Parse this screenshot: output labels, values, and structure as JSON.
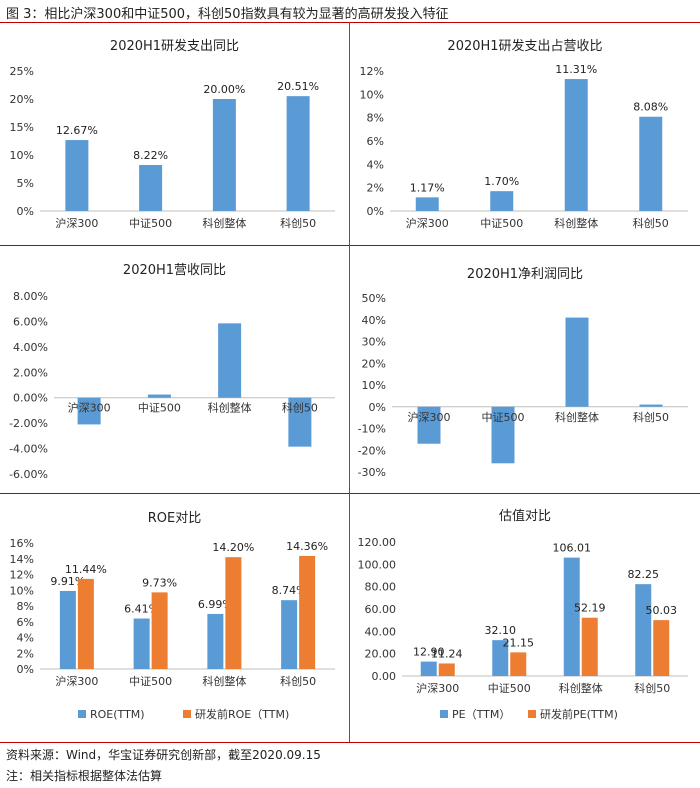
{
  "figure_title": "图 3：相比沪深300和中证500，科创50指数具有较为显著的高研发投入特征",
  "source": "资料来源：Wind，华宝证券研究创新部，截至2020.09.15",
  "note": "注：相关指标根据整体法估算",
  "colors": {
    "blue": "#5b9bd5",
    "orange": "#ed7d31",
    "rule": "#c00000"
  },
  "chart_data": [
    {
      "type": "bar",
      "title": "2020H1研发支出同比",
      "categories": [
        "沪深300",
        "中证500",
        "科创整体",
        "科创50"
      ],
      "series": [
        {
          "name": "研发支出同比",
          "values": [
            12.67,
            8.22,
            20.0,
            20.51
          ]
        }
      ],
      "data_labels": [
        "12.67%",
        "8.22%",
        "20.00%",
        "20.51%"
      ],
      "yticks": [
        "0%",
        "5%",
        "10%",
        "15%",
        "20%",
        "25%"
      ],
      "ylim": [
        0,
        25
      ],
      "legend": []
    },
    {
      "type": "bar",
      "title": "2020H1研发支出占营收比",
      "categories": [
        "沪深300",
        "中证500",
        "科创整体",
        "科创50"
      ],
      "series": [
        {
          "name": "研发支出占营收比",
          "values": [
            1.17,
            1.7,
            11.31,
            8.08
          ]
        }
      ],
      "data_labels": [
        "1.17%",
        "1.70%",
        "11.31%",
        "8.08%"
      ],
      "yticks": [
        "0%",
        "2%",
        "4%",
        "6%",
        "8%",
        "10%",
        "12%"
      ],
      "ylim": [
        0,
        12
      ],
      "legend": []
    },
    {
      "type": "bar",
      "title": "2020H1营收同比",
      "categories": [
        "沪深300",
        "中证500",
        "科创整体",
        "科创50"
      ],
      "series": [
        {
          "name": "营收同比",
          "values": [
            -2.1,
            0.25,
            5.85,
            -3.85
          ]
        }
      ],
      "data_labels": [],
      "yticks": [
        "-6.00%",
        "-4.00%",
        "-2.00%",
        "0.00%",
        "2.00%",
        "4.00%",
        "6.00%",
        "8.00%"
      ],
      "ylim": [
        -6,
        8
      ],
      "legend": []
    },
    {
      "type": "bar",
      "title": "2020H1净利润同比",
      "categories": [
        "沪深300",
        "中证500",
        "科创整体",
        "科创50"
      ],
      "series": [
        {
          "name": "净利润同比",
          "values": [
            -17,
            -26,
            41,
            1
          ]
        }
      ],
      "data_labels": [],
      "yticks": [
        "-30%",
        "-20%",
        "-10%",
        "0%",
        "10%",
        "20%",
        "30%",
        "40%",
        "50%"
      ],
      "ylim": [
        -30,
        50
      ],
      "legend": []
    },
    {
      "type": "bar",
      "title": "ROE对比",
      "categories": [
        "沪深300",
        "中证500",
        "科创整体",
        "科创50"
      ],
      "series": [
        {
          "name": "ROE(TTM)",
          "values": [
            9.91,
            6.41,
            6.99,
            8.74
          ],
          "data_labels": [
            "9.91%",
            "6.41%",
            "6.99%",
            "8.74%"
          ]
        },
        {
          "name": "研发前ROE（TTM)",
          "values": [
            11.44,
            9.73,
            14.2,
            14.36
          ],
          "data_labels": [
            "11.44%",
            "9.73%",
            "14.20%",
            "14.36%"
          ]
        }
      ],
      "yticks": [
        "0%",
        "2%",
        "4%",
        "6%",
        "8%",
        "10%",
        "12%",
        "14%",
        "16%"
      ],
      "ylim": [
        0,
        16
      ],
      "legend": [
        "ROE(TTM)",
        "研发前ROE（TTM)"
      ]
    },
    {
      "type": "bar",
      "title": "估值对比",
      "categories": [
        "沪深300",
        "中证500",
        "科创整体",
        "科创50"
      ],
      "series": [
        {
          "name": "PE（TTM）",
          "values": [
            12.9,
            32.1,
            106.01,
            82.25
          ],
          "data_labels": [
            "12.90",
            "32.10",
            "106.01",
            "82.25"
          ]
        },
        {
          "name": "研发前PE(TTM)",
          "values": [
            11.24,
            21.15,
            52.19,
            50.03
          ],
          "data_labels": [
            "11.24",
            "21.15",
            "52.19",
            "50.03"
          ]
        }
      ],
      "yticks": [
        "0.00",
        "20.00",
        "40.00",
        "60.00",
        "80.00",
        "100.00",
        "120.00"
      ],
      "ylim": [
        0,
        120
      ],
      "legend": [
        "PE（TTM）",
        "研发前PE(TTM)"
      ]
    }
  ]
}
